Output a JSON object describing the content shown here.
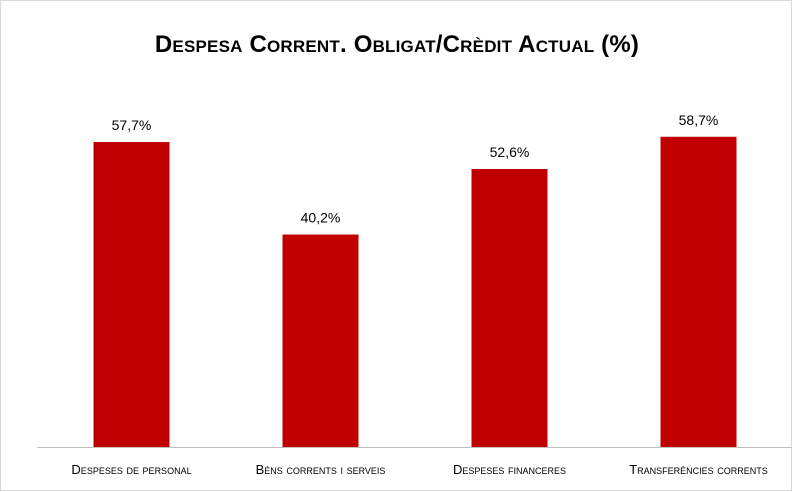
{
  "chart_data": {
    "type": "bar",
    "title": "Despesa Corrent. Obligat/Crèdit Actual (%)",
    "categories": [
      "Despeses de personal",
      "Béns corrents i serveis",
      "Despeses financeres",
      "Transferències corrents"
    ],
    "values": [
      57.7,
      40.2,
      52.6,
      58.7
    ],
    "value_labels": [
      "57,7%",
      "40,2%",
      "52,6%",
      "58,7%"
    ],
    "xlabel": "",
    "ylabel": "",
    "ylim": [
      0,
      70
    ],
    "grid": false,
    "legend": "none",
    "bar_color": "#c00000"
  }
}
